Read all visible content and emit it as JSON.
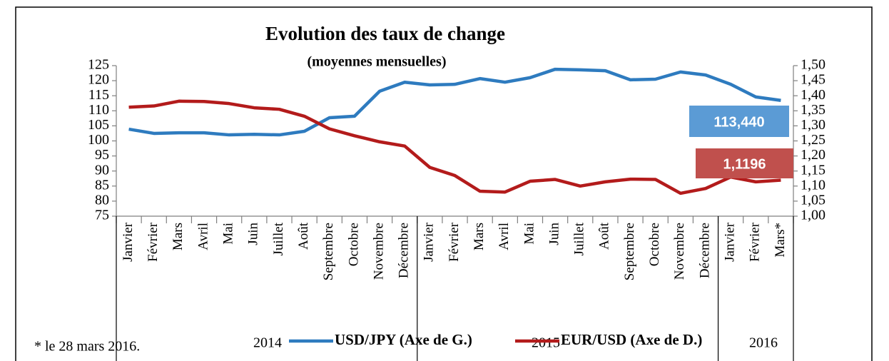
{
  "chart_data": {
    "type": "line",
    "title": "Evolution des taux de change",
    "subtitle": "(moyennes mensuelles)",
    "categories": [
      "Janvier",
      "Février",
      "Mars",
      "Avril",
      "Mai",
      "Juin",
      "Juillet",
      "Août",
      "Septembre",
      "Octobre",
      "Novembre",
      "Décembre",
      "Janvier",
      "Février",
      "Mars",
      "Avril",
      "Mai",
      "Juin",
      "Juillet",
      "Août",
      "Septembre",
      "Octobre",
      "Novembre",
      "Décembre",
      "Janvier",
      "Février",
      "Mars*"
    ],
    "groups": [
      "2014",
      "2015",
      "2016"
    ],
    "series": [
      {
        "name": "USD/JPY (Axe de G.)",
        "color": "#2e7bbf",
        "values": [
          103.9,
          102.5,
          102.7,
          102.7,
          102.0,
          102.2,
          102.0,
          103.2,
          107.7,
          108.2,
          116.5,
          119.5,
          118.6,
          118.8,
          120.7,
          119.5,
          121.0,
          123.8,
          123.6,
          123.3,
          120.3,
          120.5,
          122.9,
          121.9,
          118.8,
          114.6,
          113.44
        ],
        "value_labels": [
          null,
          null,
          null,
          null,
          null,
          null,
          null,
          null,
          null,
          null,
          null,
          null,
          null,
          null,
          null,
          null,
          null,
          null,
          null,
          null,
          null,
          null,
          null,
          null,
          null,
          null,
          "113,440"
        ],
        "label_color": "#5b9bd5"
      },
      {
        "name": "EUR/USD (Axe de D.)",
        "color": "#b31b1b",
        "axis": "y2",
        "values": [
          1.362,
          1.366,
          1.382,
          1.381,
          1.374,
          1.36,
          1.355,
          1.332,
          1.29,
          1.267,
          1.247,
          1.233,
          1.162,
          1.135,
          1.083,
          1.08,
          1.116,
          1.122,
          1.1,
          1.114,
          1.123,
          1.122,
          1.076,
          1.092,
          1.13,
          1.114,
          1.1196
        ],
        "value_labels": [
          null,
          null,
          null,
          null,
          null,
          null,
          null,
          null,
          null,
          null,
          null,
          null,
          null,
          null,
          null,
          null,
          null,
          null,
          null,
          null,
          null,
          null,
          null,
          null,
          null,
          null,
          "1,1196"
        ],
        "label_color": "#c0504d"
      }
    ],
    "ylim": [
      75,
      125
    ],
    "yticks": [
      75,
      80,
      85,
      90,
      95,
      100,
      105,
      110,
      115,
      120,
      125
    ],
    "y2lim": [
      1.0,
      1.5
    ],
    "y2ticks": [
      {
        "value": 1.0,
        "label": "1,00"
      },
      {
        "value": 1.05,
        "label": "1,05"
      },
      {
        "value": 1.1,
        "label": "1,10"
      },
      {
        "value": 1.15,
        "label": "1,15"
      },
      {
        "value": 1.2,
        "label": "1,20"
      },
      {
        "value": 1.25,
        "label": "1,25"
      },
      {
        "value": 1.3,
        "label": "1,30"
      },
      {
        "value": 1.35,
        "label": "1,35"
      },
      {
        "value": 1.4,
        "label": "1,40"
      },
      {
        "value": 1.45,
        "label": "1,45"
      },
      {
        "value": 1.5,
        "label": "1,50"
      }
    ],
    "note": "* le 28 mars 2016.",
    "grid": false
  }
}
